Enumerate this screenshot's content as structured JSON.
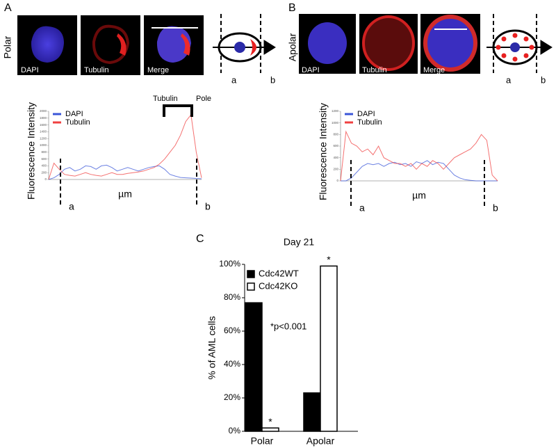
{
  "panels": {
    "A": {
      "letter": "A",
      "row_label": "Polar",
      "image_labels": [
        "DAPI",
        "Tubulin",
        "Merge"
      ],
      "diagram_labels": [
        "a",
        "b"
      ]
    },
    "B": {
      "letter": "B",
      "row_label": "Apolar",
      "image_labels": [
        "DAPI",
        "Tubulin",
        "Merge"
      ],
      "diagram_labels": [
        "a",
        "b"
      ]
    }
  },
  "chart_data": [
    {
      "type": "line",
      "y_label": "Fluorescence Intensity",
      "x_label": "µm",
      "annotations": [
        "Tubulin",
        "Pole"
      ],
      "boundary_labels": [
        "a",
        "b"
      ],
      "legend": "upper left",
      "ylim": [
        0,
        2000
      ],
      "yticks": [
        0,
        200,
        400,
        600,
        800,
        1000,
        1200,
        1400,
        1600,
        1800,
        2000
      ],
      "series": [
        {
          "name": "DAPI",
          "color": "#3a55d8",
          "values": [
            0,
            50,
            150,
            300,
            350,
            250,
            300,
            400,
            380,
            300,
            400,
            420,
            350,
            250,
            300,
            350,
            300,
            250,
            300,
            350,
            380,
            400,
            300,
            150,
            100,
            60,
            50,
            40,
            30,
            20
          ]
        },
        {
          "name": "Tubulin",
          "color": "#f04040",
          "values": [
            0,
            480,
            300,
            150,
            120,
            100,
            150,
            200,
            150,
            120,
            100,
            150,
            200,
            150,
            150,
            180,
            200,
            220,
            250,
            300,
            350,
            450,
            600,
            800,
            1000,
            1300,
            1700,
            1900,
            800,
            50
          ]
        }
      ]
    },
    {
      "type": "line",
      "y_label": "Fluorescence Intensity",
      "x_label": "µm",
      "boundary_labels": [
        "a",
        "b"
      ],
      "legend": "upper left",
      "ylim": [
        0,
        1200
      ],
      "yticks": [
        0,
        200,
        400,
        600,
        800,
        1000,
        1200
      ],
      "series": [
        {
          "name": "DAPI",
          "color": "#3a55d8",
          "values": [
            0,
            0,
            50,
            150,
            250,
            300,
            280,
            300,
            250,
            300,
            320,
            280,
            300,
            250,
            330,
            300,
            350,
            280,
            320,
            300,
            200,
            100,
            50,
            20,
            10,
            0,
            0,
            0,
            0,
            0
          ]
        },
        {
          "name": "Tubulin",
          "color": "#f04040",
          "values": [
            0,
            850,
            650,
            600,
            500,
            550,
            450,
            600,
            400,
            350,
            300,
            300,
            250,
            300,
            200,
            300,
            250,
            350,
            300,
            200,
            300,
            400,
            450,
            500,
            550,
            650,
            800,
            700,
            100,
            0
          ]
        }
      ]
    },
    {
      "type": "bar",
      "panel_label": "C",
      "title": "Day 21",
      "y_label": "% of AML cells",
      "annotations": [
        "*p<0.001"
      ],
      "categories": [
        "Polar",
        "Apolar"
      ],
      "legend": "upper left",
      "ylim": [
        0,
        100
      ],
      "yticks": [
        {
          "value": 0,
          "label": "0%"
        },
        {
          "value": 20,
          "label": "20%"
        },
        {
          "value": 40,
          "label": "40%"
        },
        {
          "value": 60,
          "label": "60%"
        },
        {
          "value": 80,
          "label": "80%"
        },
        {
          "value": 100,
          "label": "100%"
        }
      ],
      "series": [
        {
          "name": "Cdc42WT",
          "color": "#000000",
          "values": [
            77,
            23
          ]
        },
        {
          "name": "Cdc42KO",
          "color": "#ffffff",
          "values": [
            2,
            99
          ],
          "markers": [
            "*",
            "*"
          ]
        }
      ]
    }
  ]
}
